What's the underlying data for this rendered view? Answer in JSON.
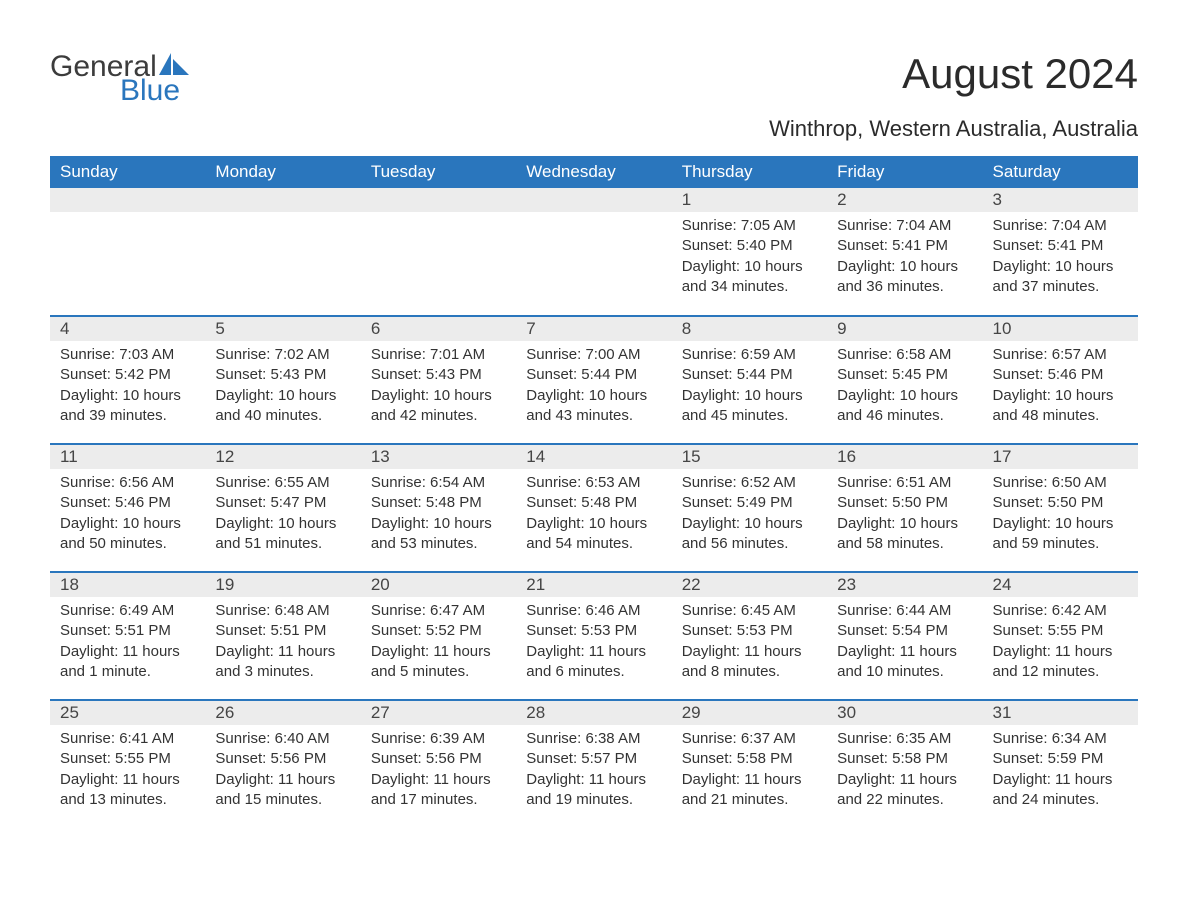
{
  "brand": {
    "part1": "General",
    "part2": "Blue"
  },
  "title": "August 2024",
  "location": "Winthrop, Western Australia, Australia",
  "colors": {
    "accent": "#2a76bd",
    "header_bg": "#2a76bd",
    "header_text": "#ffffff",
    "daynum_bg": "#ececec",
    "text": "#333333",
    "bg": "#ffffff"
  },
  "weekdays": [
    "Sunday",
    "Monday",
    "Tuesday",
    "Wednesday",
    "Thursday",
    "Friday",
    "Saturday"
  ],
  "labels": {
    "sunrise": "Sunrise: ",
    "sunset": "Sunset: ",
    "daylight": "Daylight: "
  },
  "weeks": [
    [
      null,
      null,
      null,
      null,
      {
        "day": "1",
        "sunrise": "7:05 AM",
        "sunset": "5:40 PM",
        "daylight": "10 hours and 34 minutes."
      },
      {
        "day": "2",
        "sunrise": "7:04 AM",
        "sunset": "5:41 PM",
        "daylight": "10 hours and 36 minutes."
      },
      {
        "day": "3",
        "sunrise": "7:04 AM",
        "sunset": "5:41 PM",
        "daylight": "10 hours and 37 minutes."
      }
    ],
    [
      {
        "day": "4",
        "sunrise": "7:03 AM",
        "sunset": "5:42 PM",
        "daylight": "10 hours and 39 minutes."
      },
      {
        "day": "5",
        "sunrise": "7:02 AM",
        "sunset": "5:43 PM",
        "daylight": "10 hours and 40 minutes."
      },
      {
        "day": "6",
        "sunrise": "7:01 AM",
        "sunset": "5:43 PM",
        "daylight": "10 hours and 42 minutes."
      },
      {
        "day": "7",
        "sunrise": "7:00 AM",
        "sunset": "5:44 PM",
        "daylight": "10 hours and 43 minutes."
      },
      {
        "day": "8",
        "sunrise": "6:59 AM",
        "sunset": "5:44 PM",
        "daylight": "10 hours and 45 minutes."
      },
      {
        "day": "9",
        "sunrise": "6:58 AM",
        "sunset": "5:45 PM",
        "daylight": "10 hours and 46 minutes."
      },
      {
        "day": "10",
        "sunrise": "6:57 AM",
        "sunset": "5:46 PM",
        "daylight": "10 hours and 48 minutes."
      }
    ],
    [
      {
        "day": "11",
        "sunrise": "6:56 AM",
        "sunset": "5:46 PM",
        "daylight": "10 hours and 50 minutes."
      },
      {
        "day": "12",
        "sunrise": "6:55 AM",
        "sunset": "5:47 PM",
        "daylight": "10 hours and 51 minutes."
      },
      {
        "day": "13",
        "sunrise": "6:54 AM",
        "sunset": "5:48 PM",
        "daylight": "10 hours and 53 minutes."
      },
      {
        "day": "14",
        "sunrise": "6:53 AM",
        "sunset": "5:48 PM",
        "daylight": "10 hours and 54 minutes."
      },
      {
        "day": "15",
        "sunrise": "6:52 AM",
        "sunset": "5:49 PM",
        "daylight": "10 hours and 56 minutes."
      },
      {
        "day": "16",
        "sunrise": "6:51 AM",
        "sunset": "5:50 PM",
        "daylight": "10 hours and 58 minutes."
      },
      {
        "day": "17",
        "sunrise": "6:50 AM",
        "sunset": "5:50 PM",
        "daylight": "10 hours and 59 minutes."
      }
    ],
    [
      {
        "day": "18",
        "sunrise": "6:49 AM",
        "sunset": "5:51 PM",
        "daylight": "11 hours and 1 minute."
      },
      {
        "day": "19",
        "sunrise": "6:48 AM",
        "sunset": "5:51 PM",
        "daylight": "11 hours and 3 minutes."
      },
      {
        "day": "20",
        "sunrise": "6:47 AM",
        "sunset": "5:52 PM",
        "daylight": "11 hours and 5 minutes."
      },
      {
        "day": "21",
        "sunrise": "6:46 AM",
        "sunset": "5:53 PM",
        "daylight": "11 hours and 6 minutes."
      },
      {
        "day": "22",
        "sunrise": "6:45 AM",
        "sunset": "5:53 PM",
        "daylight": "11 hours and 8 minutes."
      },
      {
        "day": "23",
        "sunrise": "6:44 AM",
        "sunset": "5:54 PM",
        "daylight": "11 hours and 10 minutes."
      },
      {
        "day": "24",
        "sunrise": "6:42 AM",
        "sunset": "5:55 PM",
        "daylight": "11 hours and 12 minutes."
      }
    ],
    [
      {
        "day": "25",
        "sunrise": "6:41 AM",
        "sunset": "5:55 PM",
        "daylight": "11 hours and 13 minutes."
      },
      {
        "day": "26",
        "sunrise": "6:40 AM",
        "sunset": "5:56 PM",
        "daylight": "11 hours and 15 minutes."
      },
      {
        "day": "27",
        "sunrise": "6:39 AM",
        "sunset": "5:56 PM",
        "daylight": "11 hours and 17 minutes."
      },
      {
        "day": "28",
        "sunrise": "6:38 AM",
        "sunset": "5:57 PM",
        "daylight": "11 hours and 19 minutes."
      },
      {
        "day": "29",
        "sunrise": "6:37 AM",
        "sunset": "5:58 PM",
        "daylight": "11 hours and 21 minutes."
      },
      {
        "day": "30",
        "sunrise": "6:35 AM",
        "sunset": "5:58 PM",
        "daylight": "11 hours and 22 minutes."
      },
      {
        "day": "31",
        "sunrise": "6:34 AM",
        "sunset": "5:59 PM",
        "daylight": "11 hours and 24 minutes."
      }
    ]
  ]
}
